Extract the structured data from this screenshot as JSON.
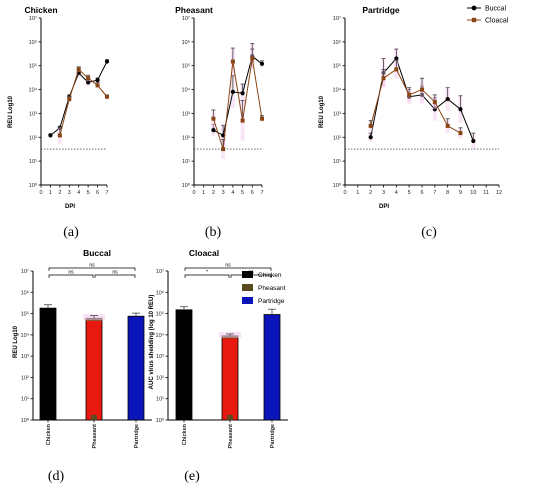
{
  "colors": {
    "buccal": "#000000",
    "cloacal": "#8B4513",
    "chicken": "#000000",
    "pheasant": "#5a4a20",
    "partridge": "#0b14b8",
    "red_fill": "#e8190f"
  },
  "panel_labels": [
    "(a)",
    "(b)",
    "(c)",
    "(d)",
    "(e)"
  ],
  "y_tick_labels": [
    "10⁰",
    "10¹",
    "10²",
    "10³",
    "10⁴",
    "10⁵",
    "10⁶",
    "10⁷"
  ],
  "chart_data": [
    {
      "type": "line",
      "title": "Chicken",
      "xlabel": "DPI",
      "ylabel": "REU Log10",
      "ylog": true,
      "ylim": [
        1,
        10000000
      ],
      "xlim": [
        0,
        7
      ],
      "x_ticks": [
        "0",
        "1",
        "2",
        "3",
        "4",
        "5",
        "6",
        "7"
      ],
      "reference_line": 32,
      "series": [
        {
          "name": "Buccal",
          "x": [
            1,
            2,
            3,
            4,
            5,
            6,
            7
          ],
          "y": [
            120,
            250,
            5000,
            50000,
            20000,
            25000,
            150000
          ],
          "err_up": [
            20,
            40,
            1000,
            30000,
            8000,
            6000,
            30000
          ]
        },
        {
          "name": "Cloacal",
          "x": [
            2,
            3,
            4,
            5,
            6,
            7
          ],
          "y": [
            120,
            4000,
            70000,
            30000,
            15000,
            5000
          ],
          "err_up": [
            150,
            1200,
            20000,
            10000,
            5000,
            1000
          ]
        }
      ]
    },
    {
      "type": "line",
      "title": "Pheasant",
      "xlabel": "",
      "ylabel": "",
      "ylog": true,
      "ylim": [
        1,
        10000000
      ],
      "xlim": [
        0,
        7
      ],
      "x_ticks": [
        "0",
        "1",
        "2",
        "3",
        "4",
        "5",
        "6",
        "7"
      ],
      "reference_line": 32,
      "series": [
        {
          "name": "Buccal",
          "x": [
            2,
            3,
            4,
            5,
            6,
            7
          ],
          "y": [
            200,
            120,
            8000,
            7000,
            250000,
            120000
          ],
          "err_up": [
            150,
            200,
            30000,
            10000,
            600000,
            40000
          ]
        },
        {
          "name": "Cloacal",
          "x": [
            2,
            3,
            4,
            5,
            6,
            7
          ],
          "y": [
            600,
            32,
            150000,
            500,
            200000,
            600
          ],
          "err_up": [
            800,
            50,
            400000,
            3000,
            300000,
            200
          ]
        }
      ]
    },
    {
      "type": "line",
      "title": "Partridge",
      "xlabel": "DPI",
      "ylabel": "REU Log10",
      "ylog": true,
      "ylim": [
        1,
        10000000
      ],
      "xlim": [
        0,
        12
      ],
      "x_ticks": [
        "0",
        "1",
        "2",
        "3",
        "4",
        "5",
        "6",
        "7",
        "8",
        "9",
        "10",
        "11",
        "12"
      ],
      "reference_line": 32,
      "legend": {
        "position": "top-right",
        "entries": [
          "Buccal",
          "Cloacal"
        ]
      },
      "series": [
        {
          "name": "Buccal",
          "x": [
            2,
            3,
            4,
            5,
            6,
            7,
            8,
            9,
            10
          ],
          "y": [
            100,
            50000,
            200000,
            5000,
            6000,
            1500,
            4000,
            1500,
            70
          ],
          "err_up": [
            50,
            150000,
            300000,
            5000,
            8000,
            3000,
            8000,
            4000,
            80
          ]
        },
        {
          "name": "Cloacal",
          "x": [
            2,
            3,
            4,
            5,
            6,
            7,
            8,
            9
          ],
          "y": [
            300,
            30000,
            70000,
            6000,
            10000,
            3000,
            300,
            150
          ],
          "err_up": [
            200,
            40000,
            100000,
            6000,
            20000,
            3000,
            300,
            100
          ]
        }
      ]
    },
    {
      "type": "bar",
      "title": "Buccal",
      "ylabel": "REU Log10",
      "ylog": true,
      "ylim": [
        1,
        10000000
      ],
      "categories": [
        "Chicken",
        "Pheasant",
        "Partridge"
      ],
      "values": [
        180000,
        60000,
        75000
      ],
      "err_up": [
        80000,
        20000,
        30000
      ],
      "significance": [
        {
          "pair": [
            "Chicken",
            "Partridge"
          ],
          "label": "ns"
        },
        {
          "pair": [
            "Chicken",
            "Pheasant"
          ],
          "label": "ns"
        },
        {
          "pair": [
            "Pheasant",
            "Partridge"
          ],
          "label": "ns"
        }
      ]
    },
    {
      "type": "bar",
      "title": "Cloacal",
      "ylabel": "AUC virus shedding (log 10 REU)",
      "ylog": true,
      "ylim": [
        1,
        10000000
      ],
      "categories": [
        "Chicken",
        "Pheasant",
        "Partridge"
      ],
      "values": [
        150000,
        9000,
        90000
      ],
      "err_up": [
        60000,
        2000,
        70000
      ],
      "legend": {
        "position": "right",
        "entries": [
          "Chicken",
          "Pheasant",
          "Partridge"
        ]
      },
      "significance": [
        {
          "pair": [
            "Chicken",
            "Partridge"
          ],
          "label": "ns"
        },
        {
          "pair": [
            "Chicken",
            "Pheasant"
          ],
          "label": "*"
        },
        {
          "pair": [
            "Pheasant",
            "Partridge"
          ],
          "label": "ns"
        }
      ]
    }
  ]
}
